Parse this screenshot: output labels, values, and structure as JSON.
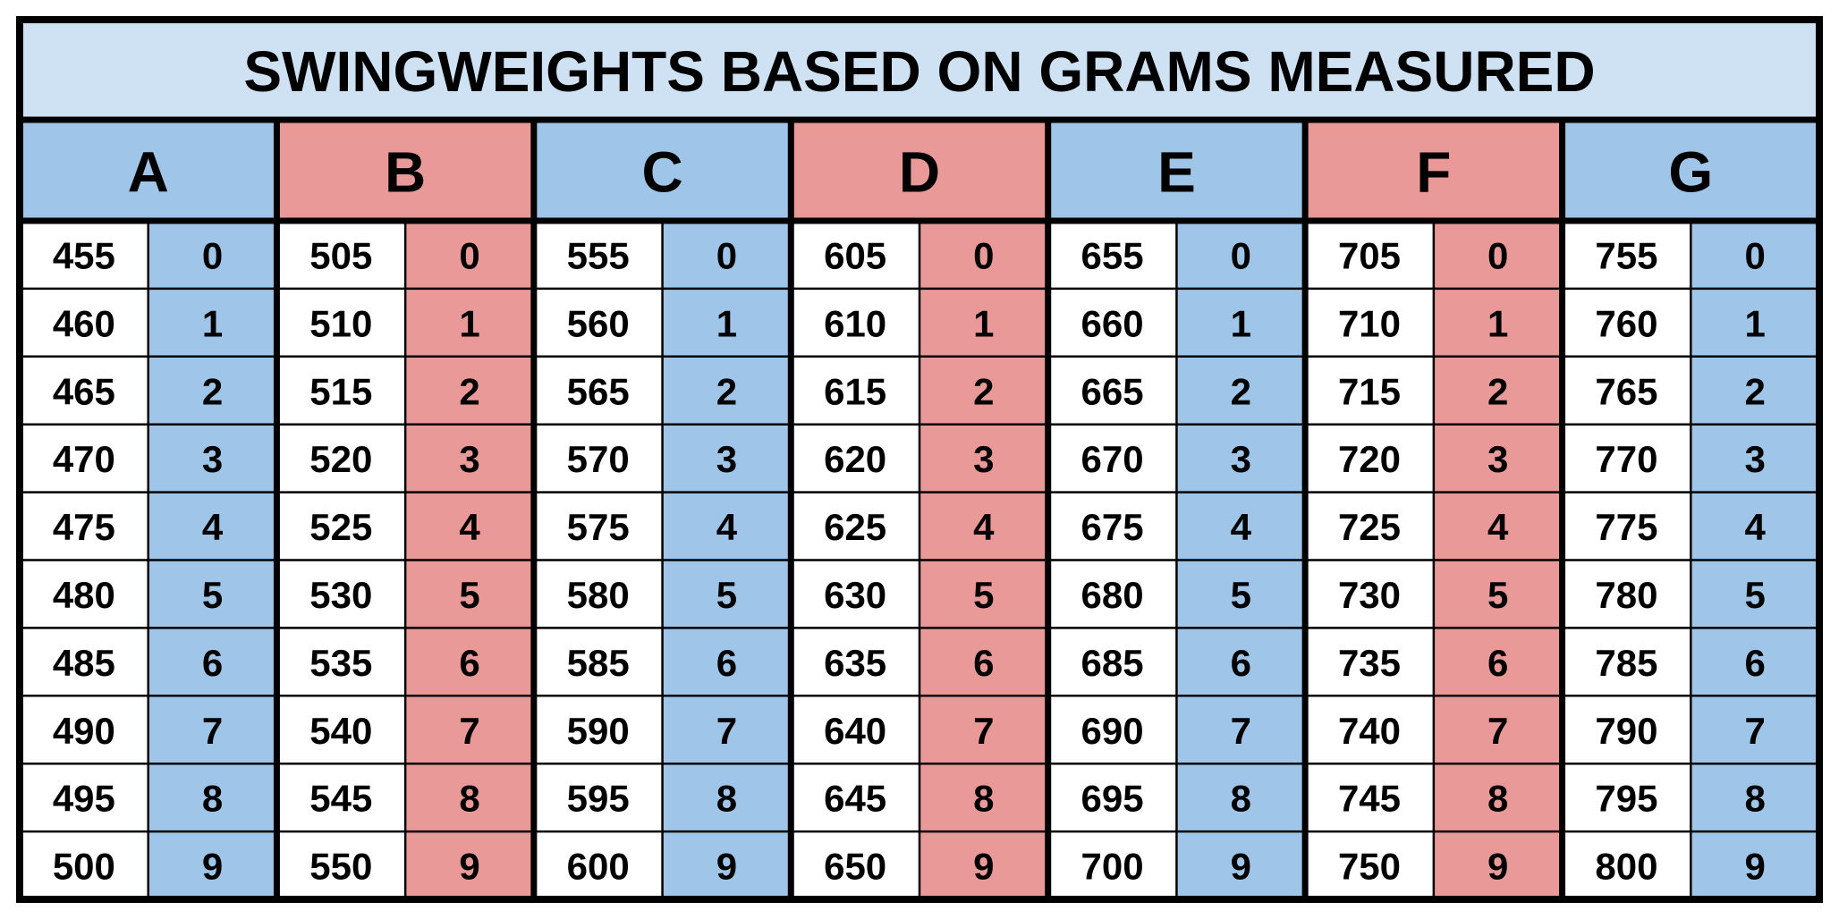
{
  "title": "SWINGWEIGHTS BASED ON GRAMS MEASURED",
  "colors": {
    "title_bg": "#cfe2f3",
    "blue": "#9fc5e8",
    "red": "#ea9999",
    "white": "#ffffff",
    "border": "#000000"
  },
  "chart_data": {
    "type": "table",
    "groups": [
      {
        "letter": "A",
        "color": "blue",
        "grams": [
          "455",
          "460",
          "465",
          "470",
          "475",
          "480",
          "485",
          "490",
          "495",
          "500"
        ],
        "points": [
          "0",
          "1",
          "2",
          "3",
          "4",
          "5",
          "6",
          "7",
          "8",
          "9"
        ]
      },
      {
        "letter": "B",
        "color": "red",
        "grams": [
          "505",
          "510",
          "515",
          "520",
          "525",
          "530",
          "535",
          "540",
          "545",
          "550"
        ],
        "points": [
          "0",
          "1",
          "2",
          "3",
          "4",
          "5",
          "6",
          "7",
          "8",
          "9"
        ]
      },
      {
        "letter": "C",
        "color": "blue",
        "grams": [
          "555",
          "560",
          "565",
          "570",
          "575",
          "580",
          "585",
          "590",
          "595",
          "600"
        ],
        "points": [
          "0",
          "1",
          "2",
          "3",
          "4",
          "5",
          "6",
          "7",
          "8",
          "9"
        ]
      },
      {
        "letter": "D",
        "color": "red",
        "grams": [
          "605",
          "610",
          "615",
          "620",
          "625",
          "630",
          "635",
          "640",
          "645",
          "650"
        ],
        "points": [
          "0",
          "1",
          "2",
          "3",
          "4",
          "5",
          "6",
          "7",
          "8",
          "9"
        ]
      },
      {
        "letter": "E",
        "color": "blue",
        "grams": [
          "655",
          "660",
          "665",
          "670",
          "675",
          "680",
          "685",
          "690",
          "695",
          "700"
        ],
        "points": [
          "0",
          "1",
          "2",
          "3",
          "4",
          "5",
          "6",
          "7",
          "8",
          "9"
        ]
      },
      {
        "letter": "F",
        "color": "red",
        "grams": [
          "705",
          "710",
          "715",
          "720",
          "725",
          "730",
          "735",
          "740",
          "745",
          "750"
        ],
        "points": [
          "0",
          "1",
          "2",
          "3",
          "4",
          "5",
          "6",
          "7",
          "8",
          "9"
        ]
      },
      {
        "letter": "G",
        "color": "blue",
        "grams": [
          "755",
          "760",
          "765",
          "770",
          "775",
          "780",
          "785",
          "790",
          "795",
          "800"
        ],
        "points": [
          "0",
          "1",
          "2",
          "3",
          "4",
          "5",
          "6",
          "7",
          "8",
          "9"
        ]
      }
    ]
  }
}
